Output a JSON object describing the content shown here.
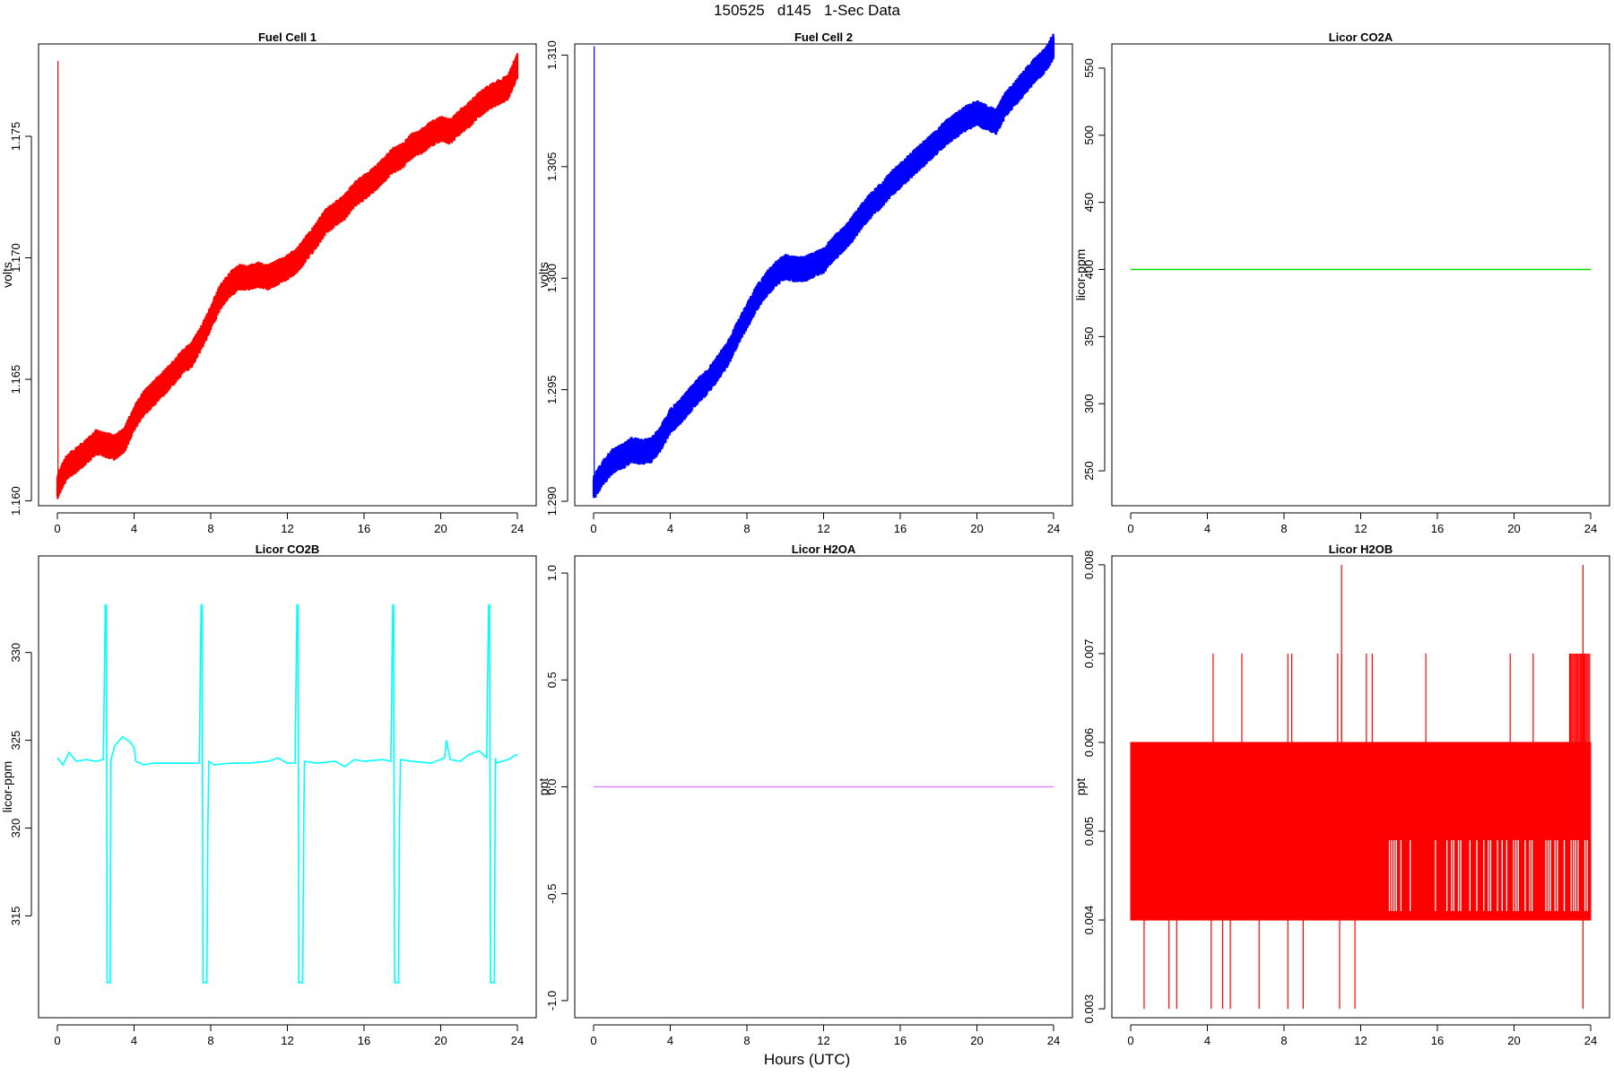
{
  "page": {
    "title": "150525   d145   1-Sec Data",
    "x_axis_title": "Hours (UTC)"
  },
  "chart_data": [
    {
      "type": "line",
      "title": "Fuel Cell 1",
      "xlabel": "",
      "ylabel": "volts",
      "xlim": [
        0,
        24
      ],
      "ylim": [
        1.1598,
        1.1788
      ],
      "x_ticks": [
        0,
        4,
        8,
        12,
        16,
        20,
        24
      ],
      "x_tick_labels": [
        "0",
        "4",
        "8",
        "12",
        "16",
        "20",
        "24"
      ],
      "y_ticks": [
        1.16,
        1.165,
        1.17,
        1.175
      ],
      "y_tick_labels": [
        "1.160",
        "1.165",
        "1.170",
        "1.175"
      ],
      "color": "#ff0000",
      "band": 0.00055,
      "spike": {
        "x": 0.03,
        "y_from": 1.1604,
        "y_to": 1.1781
      },
      "x": [
        0,
        0.5,
        1,
        1.5,
        2,
        2.5,
        3,
        3.5,
        4,
        4.5,
        5,
        5.5,
        6,
        6.5,
        7,
        7.5,
        8,
        8.5,
        9,
        9.5,
        10,
        10.5,
        11,
        11.5,
        12,
        12.5,
        13,
        13.5,
        14,
        14.5,
        15,
        15.5,
        16,
        16.5,
        17,
        17.5,
        18,
        18.5,
        19,
        19.5,
        20,
        20.5,
        21,
        21.5,
        22,
        22.5,
        23,
        23.5,
        24
      ],
      "y": [
        1.1606,
        1.1614,
        1.1617,
        1.162,
        1.1624,
        1.1623,
        1.1622,
        1.1625,
        1.1634,
        1.164,
        1.1644,
        1.1648,
        1.1652,
        1.1657,
        1.166,
        1.1667,
        1.1675,
        1.1684,
        1.1689,
        1.1692,
        1.1692,
        1.1693,
        1.1692,
        1.1694,
        1.1696,
        1.1699,
        1.1704,
        1.1709,
        1.1715,
        1.1718,
        1.1721,
        1.1726,
        1.1729,
        1.1732,
        1.1736,
        1.174,
        1.1742,
        1.1746,
        1.1748,
        1.1751,
        1.1753,
        1.1752,
        1.1756,
        1.1759,
        1.1763,
        1.1766,
        1.1768,
        1.177,
        1.1779
      ]
    },
    {
      "type": "line",
      "title": "Fuel Cell 2",
      "xlabel": "",
      "ylabel": "volts",
      "xlim": [
        0,
        24
      ],
      "ylim": [
        1.2898,
        1.3105
      ],
      "x_ticks": [
        0,
        4,
        8,
        12,
        16,
        20,
        24
      ],
      "x_tick_labels": [
        "0",
        "4",
        "8",
        "12",
        "16",
        "20",
        "24"
      ],
      "y_ticks": [
        1.29,
        1.295,
        1.3,
        1.305,
        1.31
      ],
      "y_tick_labels": [
        "1.290",
        "1.295",
        "1.300",
        "1.305",
        "1.310"
      ],
      "color": "#0000ff",
      "band": 0.0006,
      "spike": {
        "x": 0.03,
        "y_from": 1.2905,
        "y_to": 1.3104
      },
      "x": [
        0,
        0.5,
        1,
        1.5,
        2,
        2.5,
        3,
        3.5,
        4,
        4.5,
        5,
        5.5,
        6,
        6.5,
        7,
        7.5,
        8,
        8.5,
        9,
        9.5,
        10,
        10.5,
        11,
        11.5,
        12,
        12.5,
        13,
        13.5,
        14,
        14.5,
        15,
        15.5,
        16,
        16.5,
        17,
        17.5,
        18,
        18.5,
        19,
        19.5,
        20,
        20.5,
        21,
        21.5,
        22,
        22.5,
        23,
        23.5,
        24
      ],
      "y": [
        1.2906,
        1.2913,
        1.2918,
        1.292,
        1.2923,
        1.2922,
        1.2923,
        1.2928,
        1.2936,
        1.294,
        1.2945,
        1.295,
        1.2954,
        1.296,
        1.2966,
        1.2975,
        1.2983,
        1.2991,
        1.2997,
        1.3002,
        1.3005,
        1.3004,
        1.3004,
        1.3006,
        1.3008,
        1.3013,
        1.3017,
        1.3022,
        1.3028,
        1.3033,
        1.3037,
        1.3042,
        1.3046,
        1.305,
        1.3054,
        1.3058,
        1.3062,
        1.3066,
        1.3069,
        1.3072,
        1.3074,
        1.3072,
        1.307,
        1.3078,
        1.3083,
        1.3088,
        1.3093,
        1.3097,
        1.3104
      ]
    },
    {
      "type": "line",
      "title": "Licor CO2A",
      "xlabel": "",
      "ylabel": "licor-ppm",
      "xlim": [
        0,
        24
      ],
      "ylim": [
        224,
        568
      ],
      "x_ticks": [
        0,
        4,
        8,
        12,
        16,
        20,
        24
      ],
      "x_tick_labels": [
        "0",
        "4",
        "8",
        "12",
        "16",
        "20",
        "24"
      ],
      "y_ticks": [
        250,
        300,
        350,
        400,
        450,
        500,
        550
      ],
      "y_tick_labels": [
        "250",
        "300",
        "350",
        "400",
        "450",
        "500",
        "550"
      ],
      "color": "#00e000",
      "x": [
        0,
        24
      ],
      "y": [
        400,
        400
      ]
    },
    {
      "type": "line",
      "title": "Licor CO2B",
      "xlabel": "",
      "ylabel": "licor-ppm",
      "xlim": [
        0,
        24
      ],
      "ylim": [
        309.2,
        335.5
      ],
      "x_ticks": [
        0,
        4,
        8,
        12,
        16,
        20,
        24
      ],
      "x_tick_labels": [
        "0",
        "4",
        "8",
        "12",
        "16",
        "20",
        "24"
      ],
      "y_ticks": [
        315,
        320,
        325,
        330
      ],
      "y_tick_labels": [
        "315",
        "320",
        "325",
        "330"
      ],
      "color": "#00ffff",
      "x": [
        0,
        0.3,
        0.6,
        1,
        1.5,
        2,
        2.4,
        2.5,
        2.55,
        2.6,
        2.75,
        2.8,
        2.85,
        3,
        3.4,
        3.8,
        4,
        4.1,
        4.5,
        5,
        6,
        7,
        7.4,
        7.5,
        7.55,
        7.6,
        7.8,
        7.85,
        7.9,
        8.2,
        9,
        10,
        11,
        11.5,
        12,
        12.4,
        12.5,
        12.55,
        12.6,
        12.8,
        12.85,
        12.9,
        13.5,
        14.5,
        15,
        15.5,
        16,
        17,
        17.4,
        17.5,
        17.55,
        17.6,
        17.8,
        17.85,
        17.9,
        18.5,
        19.5,
        20.2,
        20.3,
        20.5,
        21,
        21.5,
        22,
        22.4,
        22.5,
        22.55,
        22.6,
        22.8,
        22.85,
        22.9,
        23.5,
        24
      ],
      "y": [
        324.0,
        323.6,
        324.3,
        323.8,
        323.9,
        323.8,
        323.9,
        332.7,
        332.7,
        311.2,
        311.2,
        323.9,
        324.1,
        324.7,
        325.2,
        324.9,
        324.6,
        323.8,
        323.6,
        323.7,
        323.7,
        323.7,
        323.7,
        332.7,
        332.7,
        311.2,
        311.2,
        320.0,
        323.8,
        323.6,
        323.7,
        323.7,
        323.8,
        324.0,
        323.7,
        323.7,
        332.7,
        332.7,
        311.2,
        311.2,
        320.5,
        323.8,
        323.7,
        323.8,
        323.5,
        323.9,
        323.8,
        323.9,
        323.8,
        332.7,
        332.7,
        311.2,
        311.2,
        320.2,
        323.9,
        323.8,
        323.7,
        324.0,
        325.0,
        323.9,
        323.8,
        324.2,
        324.4,
        324.0,
        332.7,
        332.7,
        311.2,
        311.2,
        324.0,
        323.7,
        323.9,
        324.2
      ]
    },
    {
      "type": "line",
      "title": "Licor H2OA",
      "xlabel": "",
      "ylabel": "ppt",
      "xlim": [
        0,
        24
      ],
      "ylim": [
        -1.08,
        1.08
      ],
      "x_ticks": [
        0,
        4,
        8,
        12,
        16,
        20,
        24
      ],
      "x_tick_labels": [
        "0",
        "4",
        "8",
        "12",
        "16",
        "20",
        "24"
      ],
      "y_ticks": [
        -1.0,
        -0.5,
        0.0,
        0.5,
        1.0
      ],
      "y_tick_labels": [
        "-1.0",
        "-0.5",
        "0.0",
        "0.5",
        "1.0"
      ],
      "color": "#dd88ff",
      "x": [
        0,
        24
      ],
      "y": [
        0.0,
        0.0
      ]
    },
    {
      "type": "line",
      "title": "Licor H2OB",
      "xlabel": "",
      "ylabel": "ppt",
      "xlim": [
        0,
        24
      ],
      "ylim": [
        0.0029,
        0.0081
      ],
      "x_ticks": [
        0,
        4,
        8,
        12,
        16,
        20,
        24
      ],
      "x_tick_labels": [
        "0",
        "4",
        "8",
        "12",
        "16",
        "20",
        "24"
      ],
      "y_ticks": [
        0.003,
        0.004,
        0.005,
        0.006,
        0.007,
        0.008
      ],
      "y_tick_labels": [
        "0.003",
        "0.004",
        "0.005",
        "0.006",
        "0.007",
        "0.008"
      ],
      "color": "#ff0000",
      "band_segments": [
        {
          "x_from": 0,
          "x_to": 13.5,
          "low": 0.004,
          "high": 0.006
        },
        {
          "x_from": 13.5,
          "x_to": 24,
          "low": 0.004,
          "high": 0.006
        },
        {
          "x_from": 13.5,
          "x_to": 24,
          "low": 0.005,
          "high": 0.006
        }
      ],
      "spikes_up": [
        4.3,
        5.8,
        8.2,
        8.4,
        10.8,
        11.0,
        12.3,
        12.6,
        15.4,
        19.8,
        21.0,
        22.9,
        23.5
      ],
      "spikes_down": [
        0.7,
        2.0,
        2.4,
        4.2,
        4.8,
        5.2,
        6.7,
        8.2,
        9.0,
        10.9,
        11.7,
        23.6
      ],
      "spike_top": 0.007,
      "spike_peak": [
        [
          11.0,
          0.008
        ],
        [
          23.6,
          0.008
        ]
      ],
      "spike_bottom": 0.003
    }
  ]
}
